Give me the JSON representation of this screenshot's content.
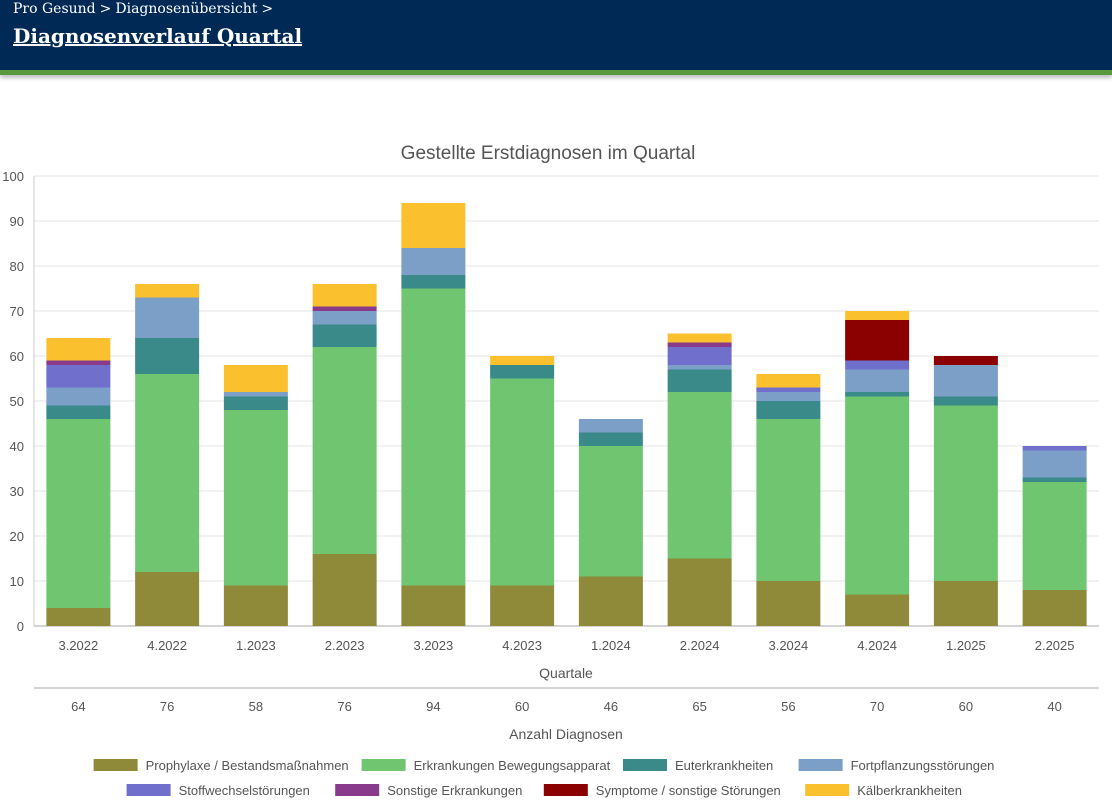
{
  "header": {
    "breadcrumb": [
      "Pro Gesund",
      "Diagnosenübersicht"
    ],
    "separator": ">",
    "title": "Diagnosenverlauf Quartal"
  },
  "chart_data": {
    "type": "bar",
    "stacked": true,
    "title": "Gestellte Erstdiagnosen im Quartal",
    "xlabel": "Quartale",
    "x2label": "Anzahl Diagnosen",
    "ylabel": "",
    "ylim": [
      0,
      100
    ],
    "yticks": [
      0,
      10,
      20,
      30,
      40,
      50,
      60,
      70,
      80,
      90,
      100
    ],
    "grid": true,
    "legend_position": "bottom",
    "categories": [
      "3.2022",
      "4.2022",
      "1.2023",
      "2.2023",
      "3.2023",
      "4.2023",
      "1.2024",
      "2.2024",
      "3.2024",
      "4.2024",
      "1.2025",
      "2.2025"
    ],
    "totals": [
      "64",
      "76",
      "58",
      "76",
      "94",
      "60",
      "46",
      "65",
      "56",
      "70",
      "60",
      "40"
    ],
    "series": [
      {
        "name": "Prophylaxe / Bestandsmaßnahmen",
        "color": "#8e8a3a",
        "values": [
          4,
          12,
          9,
          16,
          9,
          9,
          11,
          15,
          10,
          7,
          10,
          8
        ]
      },
      {
        "name": "Erkrankungen Bewegungsapparat",
        "color": "#70c670",
        "values": [
          42,
          44,
          39,
          46,
          66,
          46,
          29,
          37,
          36,
          44,
          39,
          24
        ]
      },
      {
        "name": "Euterkrankheiten",
        "color": "#3a8a8a",
        "values": [
          3,
          8,
          3,
          5,
          3,
          3,
          3,
          5,
          4,
          1,
          2,
          1
        ]
      },
      {
        "name": "Fortpflanzungsstörungen",
        "color": "#7c9fc8",
        "values": [
          4,
          9,
          1,
          3,
          6,
          0,
          3,
          1,
          2,
          5,
          7,
          6
        ]
      },
      {
        "name": "Stoffwechselstörungen",
        "color": "#7070cc",
        "values": [
          5,
          0,
          0,
          0,
          0,
          0,
          0,
          4,
          1,
          2,
          0,
          1
        ]
      },
      {
        "name": "Sonstige Erkrankungen",
        "color": "#8a3a8a",
        "values": [
          1,
          0,
          0,
          1,
          0,
          0,
          0,
          1,
          0,
          0,
          0,
          0
        ]
      },
      {
        "name": "Symptome / sonstige Störungen",
        "color": "#8b0000",
        "values": [
          0,
          0,
          0,
          0,
          0,
          0,
          0,
          0,
          0,
          9,
          2,
          0
        ]
      },
      {
        "name": "Kälberkrankheiten",
        "color": "#fbc02d",
        "values": [
          5,
          3,
          6,
          5,
          10,
          2,
          0,
          2,
          3,
          2,
          0,
          0
        ]
      }
    ]
  }
}
